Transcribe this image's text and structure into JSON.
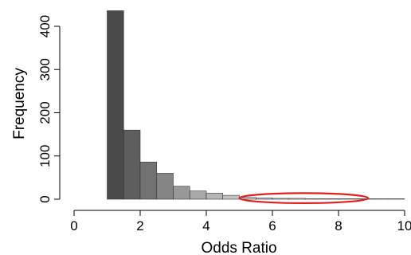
{
  "chart_data": {
    "type": "bar",
    "subtype": "histogram",
    "title": "",
    "xlabel": "Odds Ratio",
    "ylabel": "Frequency",
    "xlim": [
      0,
      10
    ],
    "ylim": [
      0,
      400
    ],
    "x_ticks": [
      "0",
      "2",
      "4",
      "6",
      "8",
      "10"
    ],
    "y_ticks": [
      "0",
      "100",
      "200",
      "300",
      "400"
    ],
    "grid": false,
    "legend": "none",
    "bins": [
      {
        "x0": 1.0,
        "x1": 1.5,
        "count": 436,
        "color": "#4a4a4a"
      },
      {
        "x0": 1.5,
        "x1": 2.0,
        "count": 160,
        "color": "#5e5e5e"
      },
      {
        "x0": 2.0,
        "x1": 2.5,
        "count": 86,
        "color": "#727272"
      },
      {
        "x0": 2.5,
        "x1": 3.0,
        "count": 60,
        "color": "#858585"
      },
      {
        "x0": 3.0,
        "x1": 3.5,
        "count": 30,
        "color": "#989898"
      },
      {
        "x0": 3.5,
        "x1": 4.0,
        "count": 19,
        "color": "#a8a8a8"
      },
      {
        "x0": 4.0,
        "x1": 4.5,
        "count": 14,
        "color": "#b6b6b6"
      },
      {
        "x0": 4.5,
        "x1": 5.0,
        "count": 9,
        "color": "#c3c3c3"
      },
      {
        "x0": 5.0,
        "x1": 5.5,
        "count": 4,
        "color": "#cccccc"
      },
      {
        "x0": 5.5,
        "x1": 6.0,
        "count": 3,
        "color": "#d2d2d2"
      },
      {
        "x0": 6.0,
        "x1": 6.5,
        "count": 2,
        "color": "#d7d7d7"
      },
      {
        "x0": 6.5,
        "x1": 7.0,
        "count": 2,
        "color": "#dbdbdb"
      },
      {
        "x0": 7.0,
        "x1": 7.5,
        "count": 1,
        "color": "#dfdfdf"
      },
      {
        "x0": 7.5,
        "x1": 8.0,
        "count": 1,
        "color": "#e2e2e2"
      },
      {
        "x0": 8.0,
        "x1": 8.5,
        "count": 1,
        "color": "#e5e5e5"
      },
      {
        "x0": 8.5,
        "x1": 9.0,
        "count": 1,
        "color": "#e8e8e8"
      },
      {
        "x0": 9.0,
        "x1": 9.5,
        "count": 1,
        "color": "#eaeaea"
      },
      {
        "x0": 9.5,
        "x1": 10.0,
        "count": 1,
        "color": "#ececec"
      }
    ],
    "annotations": [
      {
        "type": "ellipse",
        "color": "#e02020",
        "x_range": [
          5.0,
          8.9
        ],
        "y_range": [
          -9,
          14
        ]
      }
    ]
  }
}
